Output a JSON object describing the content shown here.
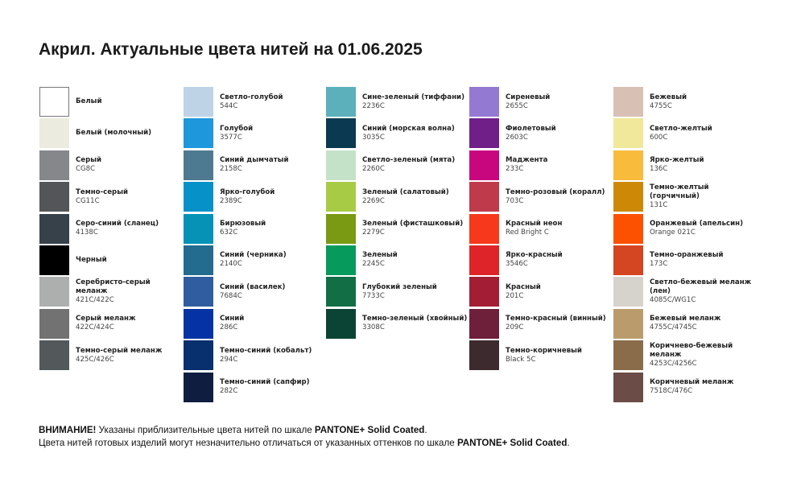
{
  "title": "Акрил. Актуальные цвета нитей на 01.06.2025",
  "columns": [
    [
      {
        "name": "Белый",
        "code": "",
        "color": "#ffffff",
        "border": true
      },
      {
        "name": "Белый (молочный)",
        "code": "",
        "color": "#ecebe0"
      },
      {
        "name": "Серый",
        "code": "CG8C",
        "color": "#86878b"
      },
      {
        "name": "Темно-серый",
        "code": "CG11C",
        "color": "#545558"
      },
      {
        "name": "Серо-синий (сланец)",
        "code": "4138C",
        "color": "#37414a"
      },
      {
        "name": "Черный",
        "code": "",
        "color": "#000000"
      },
      {
        "name": "Серебристо-серый меланж",
        "code": "421C/422C",
        "color": "#adaeae"
      },
      {
        "name": "Серый меланж",
        "code": "422C/424C",
        "color": "#717271"
      },
      {
        "name": "Темно-серый меланж",
        "code": "425C/426C",
        "color": "#53585b"
      }
    ],
    [
      {
        "name": "Светло-голубой",
        "code": "544C",
        "color": "#bed3e6"
      },
      {
        "name": "Голубой",
        "code": "3577C",
        "color": "#1f97dc"
      },
      {
        "name": "Синий дымчатый",
        "code": "2158C",
        "color": "#4e7a91"
      },
      {
        "name": "Ярко-голубой",
        "code": "2389C",
        "color": "#0691c8"
      },
      {
        "name": "Бирюзовый",
        "code": "632C",
        "color": "#0592b6"
      },
      {
        "name": "Синий (черника)",
        "code": "2140C",
        "color": "#236b8f"
      },
      {
        "name": "Синий (василек)",
        "code": "7684C",
        "color": "#2f5d9f"
      },
      {
        "name": "Синий",
        "code": "286C",
        "color": "#0533a5"
      },
      {
        "name": "Темно-синий (кобальт)",
        "code": "294C",
        "color": "#082f6e"
      },
      {
        "name": "Темно-синий (сапфир)",
        "code": "282C",
        "color": "#0f1e40"
      }
    ],
    [
      {
        "name": "Сине-зеленый (тиффани)",
        "code": "2236C",
        "color": "#5bb0bc"
      },
      {
        "name": "Синий (морская волна)",
        "code": "3035C",
        "color": "#0b3a50"
      },
      {
        "name": "Светло-зеленый (мята)",
        "code": "2260C",
        "color": "#c4e2c8"
      },
      {
        "name": "Зеленый (салатовый)",
        "code": "2269C",
        "color": "#a7cb45"
      },
      {
        "name": "Зеленый (фисташковый)",
        "code": "2279C",
        "color": "#7a9a13"
      },
      {
        "name": "Зеленый",
        "code": "2245C",
        "color": "#069a5c"
      },
      {
        "name": "Глубокий зеленый",
        "code": "7733C",
        "color": "#126f45"
      },
      {
        "name": "Темно-зеленый (хвойный)",
        "code": "3308C",
        "color": "#0b4434"
      }
    ],
    [
      {
        "name": "Сиреневый",
        "code": "2655C",
        "color": "#9479d2"
      },
      {
        "name": "Фиолетовый",
        "code": "2603C",
        "color": "#6f1f87"
      },
      {
        "name": "Маджента",
        "code": "233C",
        "color": "#c8077f"
      },
      {
        "name": "Темно-розовый (коралл)",
        "code": "703C",
        "color": "#bf3a4b"
      },
      {
        "name": "Красный неон",
        "code": "Red Bright C",
        "color": "#f6391c"
      },
      {
        "name": "Ярко-красный",
        "code": "3546C",
        "color": "#de2428"
      },
      {
        "name": "Красный",
        "code": "201C",
        "color": "#a31d35"
      },
      {
        "name": "Темно-красный (винный)",
        "code": "209C",
        "color": "#6e1f3a"
      },
      {
        "name": "Темно-коричневый",
        "code": "Black 5C",
        "color": "#3c2a2e"
      }
    ],
    [
      {
        "name": "Бежевый",
        "code": "4755C",
        "color": "#d9c0b5"
      },
      {
        "name": "Светло-желтый",
        "code": "600C",
        "color": "#f0e89a"
      },
      {
        "name": "Ярко-желтый",
        "code": "136C",
        "color": "#f9bb3c"
      },
      {
        "name": "Темно-желтый (горчичный)",
        "code": "131C",
        "color": "#cd8805"
      },
      {
        "name": "Оранжевый (апельсин)",
        "code": "Orange 021C",
        "color": "#fd5102"
      },
      {
        "name": "Темно-оранжевый",
        "code": "173C",
        "color": "#d44521"
      },
      {
        "name": "Светло-бежевый меланж (лен)",
        "code": "4085C/WG1C",
        "color": "#d6d2cc"
      },
      {
        "name": "Бежевый меланж",
        "code": "4755C/4745C",
        "color": "#ba9c6c"
      },
      {
        "name": "Коричнево-бежевый меланж",
        "code": "4253C/4256C",
        "color": "#8a6c4b"
      },
      {
        "name": "Коричневый меланж",
        "code": "7518C/476C",
        "color": "#6c4c46"
      }
    ]
  ],
  "footer": {
    "line1_bold": "ВНИМАНИЕ!",
    "line1_text": " Указаны приблизительные цвета нитей по шкале ",
    "line1_brand": "PANTONE+ Solid Coated",
    "line1_end": ".",
    "line2_text": "Цвета нитей готовых изделий могут незначительно отличаться от указанных оттенков по шкале ",
    "line2_brand": "PANTONE+ Solid Coated",
    "line2_end": "."
  }
}
